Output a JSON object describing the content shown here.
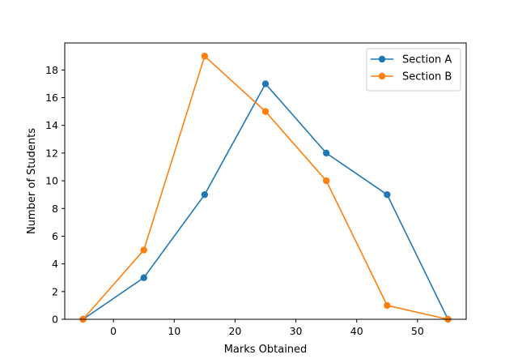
{
  "chart_data": {
    "type": "line",
    "title": "",
    "xlabel": "Marks Obtained",
    "ylabel": "Number of Students",
    "x": [
      -5,
      5,
      15,
      25,
      35,
      45,
      55
    ],
    "series": [
      {
        "name": "Section A",
        "values": [
          0,
          3,
          9,
          17,
          12,
          9,
          0
        ],
        "color": "#1f77b4"
      },
      {
        "name": "Section B",
        "values": [
          0,
          5,
          19,
          15,
          10,
          1,
          0
        ],
        "color": "#ff7f0e"
      }
    ],
    "xlim": [
      -8,
      58
    ],
    "ylim": [
      0,
      19.95
    ],
    "xticks": [
      0,
      10,
      20,
      30,
      40,
      50
    ],
    "yticks": [
      0,
      2,
      4,
      6,
      8,
      10,
      12,
      14,
      16,
      18
    ],
    "grid": false,
    "legend_position": "top-right"
  }
}
